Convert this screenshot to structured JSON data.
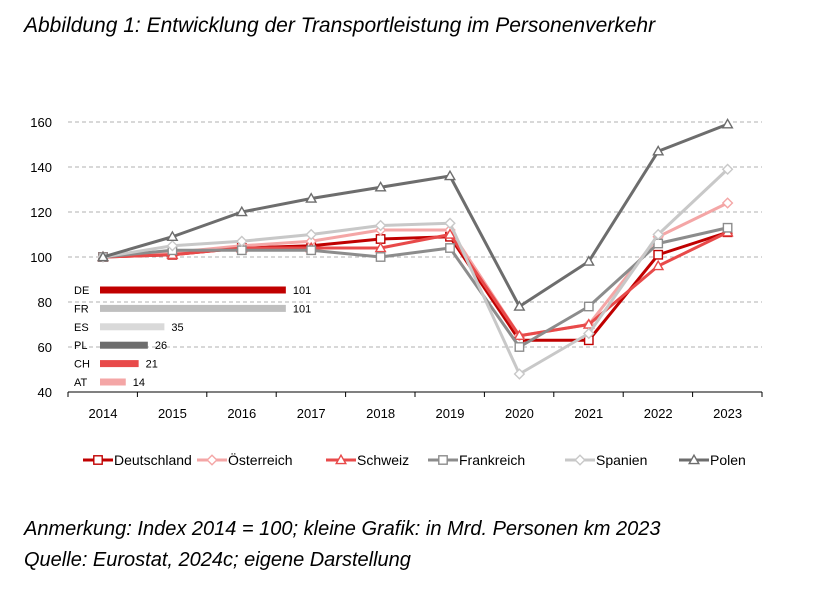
{
  "title": "Abbildung 1: Entwicklung der Transportleistung im Personenverkehr",
  "notes": {
    "anmerkung": "Anmerkung: Index 2014 = 100; kleine Grafik: in Mrd. Personen km 2023",
    "quelle": "Quelle: Eurostat, 2024c; eigene Darstellung"
  },
  "chart_data": [
    {
      "type": "line",
      "x": [
        "2014",
        "2015",
        "2016",
        "2017",
        "2018",
        "2019",
        "2020",
        "2021",
        "2022",
        "2023"
      ],
      "ylim": [
        40,
        160
      ],
      "yticks": [
        40,
        60,
        80,
        100,
        120,
        140,
        160
      ],
      "grid": true,
      "legend": "bottom",
      "series": [
        {
          "name": "Deutschland",
          "color": "#c00000",
          "marker": "square",
          "fill": "#ffffff",
          "values": [
            100,
            101,
            104,
            105,
            108,
            109,
            63,
            63,
            101,
            111
          ]
        },
        {
          "name": "Österreich",
          "color": "#f4a6a6",
          "marker": "diamond",
          "fill": "#ffffff",
          "values": [
            100,
            102,
            105,
            107,
            112,
            112,
            65,
            70,
            109,
            124
          ]
        },
        {
          "name": "Schweiz",
          "color": "#e84a4a",
          "marker": "triangle",
          "fill": "#ffffff",
          "values": [
            100,
            101,
            104,
            104,
            104,
            110,
            65,
            70,
            96,
            111
          ]
        },
        {
          "name": "Frankreich",
          "color": "#8c8c8c",
          "marker": "square",
          "fill": "#ffffff",
          "values": [
            100,
            103,
            103,
            103,
            100,
            104,
            60,
            78,
            106,
            113
          ]
        },
        {
          "name": "Spanien",
          "color": "#c8c8c8",
          "marker": "diamond",
          "fill": "#ffffff",
          "values": [
            100,
            105,
            107,
            110,
            114,
            115,
            48,
            66,
            110,
            139
          ]
        },
        {
          "name": "Polen",
          "color": "#6d6d6d",
          "marker": "triangle",
          "fill": "#ffffff",
          "values": [
            100,
            109,
            120,
            126,
            131,
            136,
            78,
            98,
            147,
            159
          ]
        }
      ]
    },
    {
      "type": "bar",
      "orientation": "horizontal",
      "categories": [
        "DE",
        "FR",
        "ES",
        "PL",
        "CH",
        "AT"
      ],
      "values": [
        101,
        101,
        35,
        26,
        21,
        14
      ],
      "colors": [
        "#c00000",
        "#bfbfbf",
        "#d9d9d9",
        "#6d6d6d",
        "#e84a4a",
        "#f4a6a6"
      ]
    }
  ]
}
